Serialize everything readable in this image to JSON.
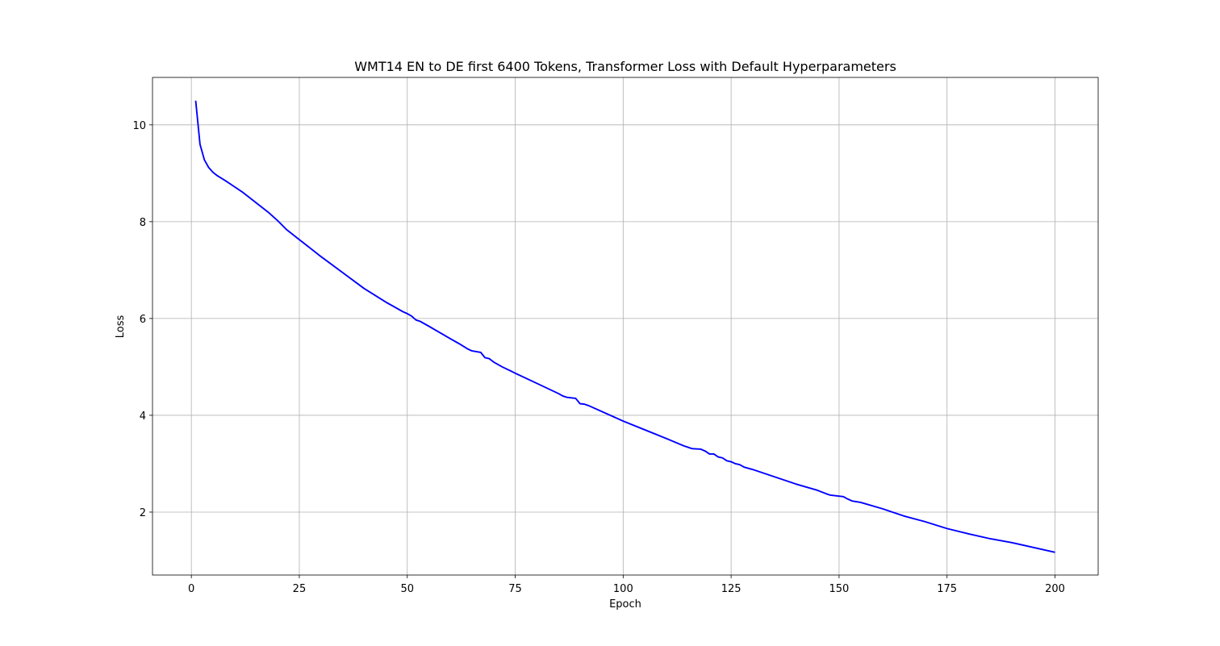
{
  "chart_data": {
    "type": "line",
    "title": "WMT14 EN to DE first 6400 Tokens, Transformer Loss with Default Hyperparameters",
    "xlabel": "Epoch",
    "ylabel": "Loss",
    "xlim": [
      -9,
      210
    ],
    "ylim": [
      0.7,
      10.98
    ],
    "xticks": [
      0,
      25,
      50,
      75,
      100,
      125,
      150,
      175,
      200
    ],
    "yticks": [
      2,
      4,
      6,
      8,
      10
    ],
    "grid": true,
    "series": [
      {
        "color": "#0000ff",
        "points": [
          [
            1,
            10.5
          ],
          [
            2,
            9.6
          ],
          [
            3,
            9.28
          ],
          [
            4,
            9.12
          ],
          [
            5,
            9.02
          ],
          [
            6,
            8.95
          ],
          [
            8,
            8.84
          ],
          [
            10,
            8.72
          ],
          [
            12,
            8.6
          ],
          [
            14,
            8.46
          ],
          [
            16,
            8.32
          ],
          [
            18,
            8.18
          ],
          [
            20,
            8.02
          ],
          [
            22,
            7.84
          ],
          [
            25,
            7.63
          ],
          [
            30,
            7.28
          ],
          [
            35,
            6.95
          ],
          [
            40,
            6.62
          ],
          [
            45,
            6.34
          ],
          [
            49,
            6.14
          ],
          [
            50,
            6.1
          ],
          [
            51,
            6.05
          ],
          [
            52,
            5.97
          ],
          [
            53,
            5.94
          ],
          [
            55,
            5.84
          ],
          [
            60,
            5.58
          ],
          [
            62,
            5.48
          ],
          [
            64,
            5.37
          ],
          [
            65,
            5.33
          ],
          [
            67,
            5.3
          ],
          [
            68,
            5.19
          ],
          [
            69,
            5.17
          ],
          [
            70,
            5.1
          ],
          [
            72,
            5.0
          ],
          [
            75,
            4.87
          ],
          [
            80,
            4.66
          ],
          [
            85,
            4.45
          ],
          [
            86,
            4.4
          ],
          [
            87,
            4.37
          ],
          [
            88,
            4.36
          ],
          [
            89,
            4.35
          ],
          [
            90,
            4.24
          ],
          [
            91,
            4.23
          ],
          [
            92,
            4.2
          ],
          [
            95,
            4.08
          ],
          [
            100,
            3.88
          ],
          [
            105,
            3.7
          ],
          [
            110,
            3.52
          ],
          [
            114,
            3.37
          ],
          [
            115,
            3.34
          ],
          [
            116,
            3.31
          ],
          [
            118,
            3.3
          ],
          [
            119,
            3.26
          ],
          [
            120,
            3.2
          ],
          [
            121,
            3.2
          ],
          [
            122,
            3.14
          ],
          [
            123,
            3.12
          ],
          [
            124,
            3.06
          ],
          [
            125,
            3.04
          ],
          [
            126,
            3.0
          ],
          [
            127,
            2.98
          ],
          [
            128,
            2.93
          ],
          [
            130,
            2.88
          ],
          [
            135,
            2.73
          ],
          [
            140,
            2.58
          ],
          [
            145,
            2.45
          ],
          [
            147,
            2.38
          ],
          [
            148,
            2.35
          ],
          [
            149,
            2.34
          ],
          [
            150,
            2.33
          ],
          [
            151,
            2.32
          ],
          [
            152,
            2.27
          ],
          [
            153,
            2.23
          ],
          [
            155,
            2.2
          ],
          [
            160,
            2.07
          ],
          [
            165,
            1.92
          ],
          [
            170,
            1.8
          ],
          [
            175,
            1.66
          ],
          [
            180,
            1.55
          ],
          [
            185,
            1.45
          ],
          [
            190,
            1.37
          ],
          [
            195,
            1.27
          ],
          [
            200,
            1.17
          ]
        ]
      }
    ]
  }
}
